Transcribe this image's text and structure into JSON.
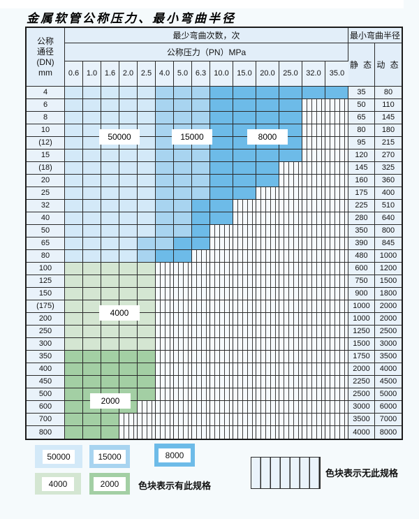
{
  "page": {
    "title": "金属软管公称压力、最小弯曲半径"
  },
  "table": {
    "header": {
      "dn_lines": [
        "公称",
        "通径",
        "(DN)",
        "mm"
      ],
      "cycles_title": "最少弯曲次数，次",
      "pressure_title": "公称压力（PN）MPa",
      "pressures": [
        "0.6",
        "1.0",
        "1.6",
        "2.0",
        "2.5",
        "4.0",
        "5.0",
        "6.3",
        "10.0",
        "15.0",
        "20.0",
        "25.0",
        "32.0",
        "35.0"
      ],
      "radius_title": "最小弯曲半径",
      "static_label": "静 态",
      "dynamic_label": "动 态"
    },
    "rows": [
      {
        "dn": "4",
        "cells": [
          "50000",
          "50000",
          "50000",
          "50000",
          "50000",
          "15000",
          "15000",
          "15000",
          "8000",
          "8000",
          "8000",
          "8000",
          "8000",
          "8000"
        ],
        "static": "35",
        "dynamic": "80"
      },
      {
        "dn": "6",
        "cells": [
          "50000",
          "50000",
          "50000",
          "50000",
          "50000",
          "15000",
          "15000",
          "15000",
          "8000",
          "8000",
          "8000",
          "8000",
          "none",
          "none"
        ],
        "static": "50",
        "dynamic": "110"
      },
      {
        "dn": "8",
        "cells": [
          "50000",
          "50000",
          "50000",
          "50000",
          "50000",
          "15000",
          "15000",
          "15000",
          "8000",
          "8000",
          "8000",
          "8000",
          "none",
          "none"
        ],
        "static": "65",
        "dynamic": "145"
      },
      {
        "dn": "10",
        "cells": [
          "50000",
          "50000",
          "50000",
          "50000",
          "50000",
          "15000",
          "15000",
          "15000",
          "8000",
          "8000",
          "8000",
          "8000",
          "none",
          "none"
        ],
        "static": "80",
        "dynamic": "180"
      },
      {
        "dn": "(12)",
        "cells": [
          "50000",
          "50000",
          "50000",
          "50000",
          "50000",
          "15000",
          "15000",
          "15000",
          "8000",
          "8000",
          "8000",
          "8000",
          "none",
          "none"
        ],
        "static": "95",
        "dynamic": "215"
      },
      {
        "dn": "15",
        "cells": [
          "50000",
          "50000",
          "50000",
          "50000",
          "50000",
          "15000",
          "15000",
          "15000",
          "8000",
          "8000",
          "8000",
          "8000",
          "none",
          "none"
        ],
        "static": "120",
        "dynamic": "270"
      },
      {
        "dn": "(18)",
        "cells": [
          "50000",
          "50000",
          "50000",
          "50000",
          "50000",
          "15000",
          "15000",
          "15000",
          "8000",
          "8000",
          "8000",
          "none",
          "none",
          "none"
        ],
        "static": "145",
        "dynamic": "325"
      },
      {
        "dn": "20",
        "cells": [
          "50000",
          "50000",
          "50000",
          "50000",
          "50000",
          "15000",
          "15000",
          "15000",
          "8000",
          "8000",
          "8000",
          "none",
          "none",
          "none"
        ],
        "static": "160",
        "dynamic": "360"
      },
      {
        "dn": "25",
        "cells": [
          "50000",
          "50000",
          "50000",
          "50000",
          "50000",
          "15000",
          "15000",
          "15000",
          "8000",
          "8000",
          "none",
          "none",
          "none",
          "none"
        ],
        "static": "175",
        "dynamic": "400"
      },
      {
        "dn": "32",
        "cells": [
          "50000",
          "50000",
          "50000",
          "50000",
          "50000",
          "15000",
          "15000",
          "8000",
          "8000",
          "none",
          "none",
          "none",
          "none",
          "none"
        ],
        "static": "225",
        "dynamic": "510"
      },
      {
        "dn": "40",
        "cells": [
          "50000",
          "50000",
          "50000",
          "50000",
          "50000",
          "15000",
          "15000",
          "8000",
          "8000",
          "none",
          "none",
          "none",
          "none",
          "none"
        ],
        "static": "280",
        "dynamic": "640"
      },
      {
        "dn": "50",
        "cells": [
          "50000",
          "50000",
          "50000",
          "50000",
          "50000",
          "15000",
          "15000",
          "8000",
          "none",
          "none",
          "none",
          "none",
          "none",
          "none"
        ],
        "static": "350",
        "dynamic": "800"
      },
      {
        "dn": "65",
        "cells": [
          "50000",
          "50000",
          "50000",
          "50000",
          "15000",
          "15000",
          "8000",
          "8000",
          "none",
          "none",
          "none",
          "none",
          "none",
          "none"
        ],
        "static": "390",
        "dynamic": "845"
      },
      {
        "dn": "80",
        "cells": [
          "50000",
          "50000",
          "50000",
          "50000",
          "15000",
          "8000",
          "8000",
          "none",
          "none",
          "none",
          "none",
          "none",
          "none",
          "none"
        ],
        "static": "480",
        "dynamic": "1000"
      },
      {
        "dn": "100",
        "cells": [
          "4000",
          "4000",
          "4000",
          "4000",
          "4000",
          "none",
          "none",
          "none",
          "none",
          "none",
          "none",
          "none",
          "none",
          "none"
        ],
        "static": "600",
        "dynamic": "1200"
      },
      {
        "dn": "125",
        "cells": [
          "4000",
          "4000",
          "4000",
          "4000",
          "4000",
          "none",
          "none",
          "none",
          "none",
          "none",
          "none",
          "none",
          "none",
          "none"
        ],
        "static": "750",
        "dynamic": "1500"
      },
      {
        "dn": "150",
        "cells": [
          "4000",
          "4000",
          "4000",
          "4000",
          "4000",
          "none",
          "none",
          "none",
          "none",
          "none",
          "none",
          "none",
          "none",
          "none"
        ],
        "static": "900",
        "dynamic": "1800"
      },
      {
        "dn": "(175)",
        "cells": [
          "4000",
          "4000",
          "4000",
          "4000",
          "4000",
          "none",
          "none",
          "none",
          "none",
          "none",
          "none",
          "none",
          "none",
          "none"
        ],
        "static": "1000",
        "dynamic": "2000"
      },
      {
        "dn": "200",
        "cells": [
          "4000",
          "4000",
          "4000",
          "4000",
          "4000",
          "none",
          "none",
          "none",
          "none",
          "none",
          "none",
          "none",
          "none",
          "none"
        ],
        "static": "1000",
        "dynamic": "2000"
      },
      {
        "dn": "250",
        "cells": [
          "4000",
          "4000",
          "4000",
          "4000",
          "4000",
          "none",
          "none",
          "none",
          "none",
          "none",
          "none",
          "none",
          "none",
          "none"
        ],
        "static": "1250",
        "dynamic": "2500"
      },
      {
        "dn": "300",
        "cells": [
          "4000",
          "4000",
          "4000",
          "4000",
          "4000",
          "none",
          "none",
          "none",
          "none",
          "none",
          "none",
          "none",
          "none",
          "none"
        ],
        "static": "1500",
        "dynamic": "3000"
      },
      {
        "dn": "350",
        "cells": [
          "2000",
          "2000",
          "2000",
          "2000",
          "2000",
          "none",
          "none",
          "none",
          "none",
          "none",
          "none",
          "none",
          "none",
          "none"
        ],
        "static": "1750",
        "dynamic": "3500"
      },
      {
        "dn": "400",
        "cells": [
          "2000",
          "2000",
          "2000",
          "2000",
          "2000",
          "none",
          "none",
          "none",
          "none",
          "none",
          "none",
          "none",
          "none",
          "none"
        ],
        "static": "2000",
        "dynamic": "4000"
      },
      {
        "dn": "450",
        "cells": [
          "2000",
          "2000",
          "2000",
          "2000",
          "2000",
          "none",
          "none",
          "none",
          "none",
          "none",
          "none",
          "none",
          "none",
          "none"
        ],
        "static": "2250",
        "dynamic": "4500"
      },
      {
        "dn": "500",
        "cells": [
          "2000",
          "2000",
          "2000",
          "2000",
          "2000",
          "none",
          "none",
          "none",
          "none",
          "none",
          "none",
          "none",
          "none",
          "none"
        ],
        "static": "2500",
        "dynamic": "5000"
      },
      {
        "dn": "600",
        "cells": [
          "2000",
          "2000",
          "2000",
          "2000",
          "none",
          "none",
          "none",
          "none",
          "none",
          "none",
          "none",
          "none",
          "none",
          "none"
        ],
        "static": "3000",
        "dynamic": "6000"
      },
      {
        "dn": "700",
        "cells": [
          "2000",
          "2000",
          "2000",
          "none",
          "none",
          "none",
          "none",
          "none",
          "none",
          "none",
          "none",
          "none",
          "none",
          "none"
        ],
        "static": "3500",
        "dynamic": "7000"
      },
      {
        "dn": "800",
        "cells": [
          "2000",
          "2000",
          "2000",
          "none",
          "none",
          "none",
          "none",
          "none",
          "none",
          "none",
          "none",
          "none",
          "none",
          "none"
        ],
        "static": "4000",
        "dynamic": "8000"
      }
    ],
    "overlays": {
      "blue50000": "50000",
      "blue15000": "15000",
      "blue8000": "8000",
      "green4000": "4000",
      "green2000": "2000"
    }
  },
  "legend": {
    "swatches": [
      {
        "value": "50000",
        "color": "#d3e9f8"
      },
      {
        "value": "15000",
        "color": "#a8d4f0"
      },
      {
        "value": "8000",
        "color": "#6dbbe8"
      },
      {
        "value": "4000",
        "color": "#d4e6d2"
      },
      {
        "value": "2000",
        "color": "#a3cfa4"
      }
    ],
    "has_spec_text": "色块表示有此规格",
    "no_spec_text": "色块表示无此规格"
  },
  "colors": {
    "no_spec_stripe": "#2a2a2a",
    "grid_line": "#2a2a2a",
    "label_cell_bg": "#e9f2fa"
  }
}
